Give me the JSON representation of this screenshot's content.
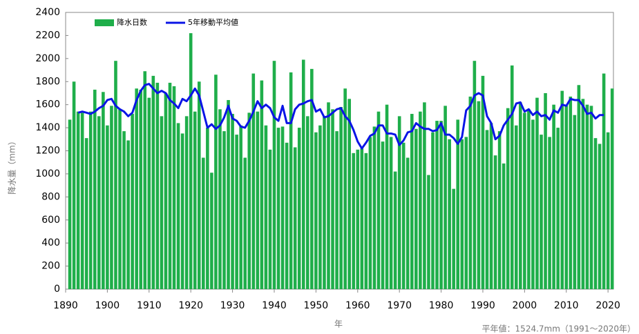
{
  "chart_data": {
    "type": "bar",
    "y_label": "降水量（mm）",
    "x_label": "年",
    "note": "平年値：1524.7mm（1991〜2020年）",
    "xlim": [
      1890,
      2021.3
    ],
    "xticks": [
      1890,
      1900,
      1910,
      1920,
      1930,
      1940,
      1950,
      1960,
      1970,
      1980,
      1990,
      2000,
      2010,
      2020
    ],
    "ylim": [
      0,
      2400
    ],
    "yticks": [
      0,
      200,
      400,
      600,
      800,
      1000,
      1200,
      1400,
      1600,
      1800,
      2000,
      2200,
      2400
    ],
    "grid": false,
    "legend": "upper left",
    "x": [
      1891,
      1892,
      1893,
      1894,
      1895,
      1896,
      1897,
      1898,
      1899,
      1900,
      1901,
      1902,
      1903,
      1904,
      1905,
      1906,
      1907,
      1908,
      1909,
      1910,
      1911,
      1912,
      1913,
      1914,
      1915,
      1916,
      1917,
      1918,
      1919,
      1920,
      1921,
      1922,
      1923,
      1924,
      1925,
      1926,
      1927,
      1928,
      1929,
      1930,
      1931,
      1932,
      1933,
      1934,
      1935,
      1936,
      1937,
      1938,
      1939,
      1940,
      1941,
      1942,
      1943,
      1944,
      1945,
      1946,
      1947,
      1948,
      1949,
      1950,
      1951,
      1952,
      1953,
      1954,
      1955,
      1956,
      1957,
      1958,
      1959,
      1960,
      1961,
      1962,
      1963,
      1964,
      1965,
      1966,
      1967,
      1968,
      1969,
      1970,
      1971,
      1972,
      1973,
      1974,
      1975,
      1976,
      1977,
      1978,
      1979,
      1980,
      1981,
      1982,
      1983,
      1984,
      1985,
      1986,
      1987,
      1988,
      1989,
      1990,
      1991,
      1992,
      1993,
      1994,
      1995,
      1996,
      1997,
      1998,
      1999,
      2000,
      2001,
      2002,
      2003,
      2004,
      2005,
      2006,
      2007,
      2008,
      2009,
      2010,
      2011,
      2012,
      2013,
      2014,
      2015,
      2016,
      2017,
      2018,
      2019,
      2020,
      2021
    ],
    "series": [
      {
        "name": "降水日数",
        "type": "bar",
        "color": "#1fae4a",
        "values": [
          1470,
          1800,
          1540,
          1530,
          1310,
          1540,
          1730,
          1500,
          1710,
          1420,
          1590,
          1980,
          1560,
          1370,
          1290,
          1520,
          1740,
          1730,
          1890,
          1660,
          1850,
          1790,
          1500,
          1700,
          1790,
          1760,
          1440,
          1350,
          1500,
          2220,
          1540,
          1800,
          1140,
          1400,
          1010,
          1860,
          1560,
          1370,
          1640,
          1520,
          1340,
          1420,
          1140,
          1530,
          1870,
          1540,
          1810,
          1420,
          1210,
          1980,
          1400,
          1410,
          1270,
          1880,
          1230,
          1400,
          1990,
          1500,
          1910,
          1360,
          1420,
          1500,
          1620,
          1560,
          1370,
          1580,
          1740,
          1650,
          1180,
          1210,
          1220,
          1180,
          1320,
          1410,
          1540,
          1280,
          1600,
          1320,
          1020,
          1500,
          1270,
          1140,
          1520,
          1390,
          1540,
          1620,
          990,
          1360,
          1460,
          1460,
          1590,
          1300,
          870,
          1470,
          1300,
          1320,
          1670,
          1980,
          1630,
          1850,
          1380,
          1440,
          1160,
          1370,
          1090,
          1570,
          1940,
          1420,
          1620,
          1530,
          1560,
          1470,
          1660,
          1340,
          1700,
          1320,
          1600,
          1400,
          1720,
          1600,
          1670,
          1510,
          1770,
          1650,
          1600,
          1590,
          1310,
          1260,
          1870,
          1360,
          1740
        ]
      },
      {
        "name": "5年移動平均値",
        "type": "line",
        "color": "#0a14e6",
        "values": [
          null,
          null,
          1530,
          1540,
          1530,
          1520,
          1540,
          1570,
          1590,
          1640,
          1650,
          1590,
          1560,
          1540,
          1500,
          1530,
          1640,
          1720,
          1770,
          1780,
          1740,
          1700,
          1720,
          1700,
          1640,
          1610,
          1570,
          1650,
          1630,
          1680,
          1740,
          1680,
          1540,
          1400,
          1430,
          1390,
          1420,
          1490,
          1590,
          1480,
          1460,
          1410,
          1400,
          1460,
          1540,
          1630,
          1570,
          1600,
          1570,
          1490,
          1460,
          1590,
          1440,
          1440,
          1560,
          1600,
          1610,
          1630,
          1640,
          1540,
          1560,
          1490,
          1500,
          1530,
          1560,
          1570,
          1500,
          1460,
          1380,
          1280,
          1220,
          1270,
          1330,
          1350,
          1420,
          1420,
          1350,
          1350,
          1340,
          1250,
          1290,
          1360,
          1370,
          1440,
          1410,
          1390,
          1390,
          1370,
          1380,
          1440,
          1340,
          1340,
          1310,
          1260,
          1320,
          1550,
          1590,
          1680,
          1700,
          1680,
          1500,
          1440,
          1300,
          1330,
          1420,
          1470,
          1520,
          1610,
          1620,
          1540,
          1560,
          1510,
          1540,
          1500,
          1510,
          1470,
          1550,
          1530,
          1600,
          1590,
          1650,
          1640,
          1640,
          1590,
          1520,
          1530,
          1480,
          1510,
          1510,
          null,
          null
        ]
      }
    ]
  }
}
